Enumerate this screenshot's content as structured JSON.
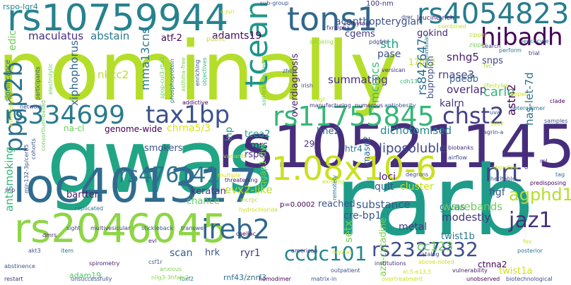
{
  "word_cloud": {
    "words": [
      {
        "text": "nominally",
        "color": "#b5de2b"
      },
      {
        "text": "gwas",
        "color": "#21a585"
      },
      {
        "text": "rs10521145",
        "color": "#472e7c"
      },
      {
        "text": "rarb",
        "color": "#1e9c89"
      },
      {
        "text": "loc401317",
        "color": "#2f6c8e"
      },
      {
        "text": "rs10759944",
        "color": "#26828e"
      },
      {
        "text": "1.08x10-6",
        "color": "#cae11f"
      },
      {
        "text": "rs2046045",
        "color": "#8ed645"
      },
      {
        "text": "tons1",
        "color": "#31678e"
      },
      {
        "text": "rs4054823",
        "color": "#297b8e"
      },
      {
        "text": "hibadh",
        "color": "#440154"
      },
      {
        "text": "tceanc",
        "color": "#1f968b"
      },
      {
        "text": "rs334699",
        "color": "#297a8e"
      },
      {
        "text": "tax1bp",
        "color": "#3b528b"
      },
      {
        "text": "rs11755845",
        "color": "#35b779"
      },
      {
        "text": "chst2",
        "color": "#433e85"
      },
      {
        "text": "ppap2b",
        "color": "#2c728e"
      },
      {
        "text": "nrt",
        "color": "#3e4989"
      },
      {
        "text": "jaz1",
        "color": "#46307e"
      },
      {
        "text": "ireb2",
        "color": "#31678e"
      },
      {
        "text": "rs476141",
        "color": "#2c728e"
      },
      {
        "text": "ccdc101",
        "color": "#25858e"
      },
      {
        "text": "rs2327832",
        "color": "#3d4e8a"
      },
      {
        "text": "agphd1",
        "color": "#b5de2b"
      },
      {
        "text": "maculatus",
        "color": "#472d7b"
      },
      {
        "text": "abstain",
        "color": "#2a788e"
      },
      {
        "text": "atf-2",
        "color": "#440154"
      },
      {
        "text": "adamts19",
        "color": "#46085c"
      },
      {
        "text": "cgems",
        "color": "#443983"
      },
      {
        "text": "acanthopterygian",
        "color": "#3b528b"
      },
      {
        "text": "gokind",
        "color": "#482677"
      },
      {
        "text": "pase",
        "color": "#3a548c"
      },
      {
        "text": "sth",
        "color": "#20a486"
      },
      {
        "text": "rs842647",
        "color": "#2d708e"
      },
      {
        "text": "snhg5",
        "color": "#481a6c"
      },
      {
        "text": "pde8b",
        "color": "#31688e"
      },
      {
        "text": "17p12",
        "color": "#bddf26"
      },
      {
        "text": "snps",
        "color": "#414487"
      },
      {
        "text": "rnase3",
        "color": "#404688"
      },
      {
        "text": "summating",
        "color": "#472c7a"
      },
      {
        "text": "overlap",
        "color": "#472a7a"
      },
      {
        "text": "kalrn",
        "color": "#46337f"
      },
      {
        "text": "carlo",
        "color": "#35b779"
      },
      {
        "text": "astn2",
        "color": "#440154"
      },
      {
        "text": "has-let-7d",
        "color": "#2c728e"
      },
      {
        "text": "bupropion",
        "color": "#3e4a89"
      },
      {
        "text": "mcrpcs",
        "color": "#3fbc73"
      },
      {
        "text": "overdiagnosis",
        "color": "#481f70"
      },
      {
        "text": "mma13cns",
        "color": "#2a788e"
      },
      {
        "text": "xiphophorus",
        "color": "#31678e"
      },
      {
        "text": "nkcc2",
        "color": "#b8de29"
      },
      {
        "text": "antismoking",
        "color": "#35b779"
      },
      {
        "text": "edic",
        "color": "#6ccd5a"
      },
      {
        "text": "significance",
        "color": "#2e6e8e"
      },
      {
        "text": "na-cl",
        "color": "#6ccd5a"
      },
      {
        "text": "genome-wide",
        "color": "#440154"
      },
      {
        "text": "chrna5/3",
        "color": "#d8e219"
      },
      {
        "text": "lnp",
        "color": "#20a386"
      },
      {
        "text": "tcea2",
        "color": "#1f9e89"
      },
      {
        "text": "hne2",
        "color": "#32648e"
      },
      {
        "text": "dichotomised",
        "color": "#24878e"
      },
      {
        "text": "smokers",
        "color": "#3b528b"
      },
      {
        "text": "emrs",
        "color": "#481f70"
      },
      {
        "text": "rspos",
        "color": "#46307e"
      },
      {
        "text": "29c",
        "color": "#472e7c"
      },
      {
        "text": "htr4",
        "color": "#2b748e"
      },
      {
        "text": "rnase2",
        "color": "#2f6c8e"
      },
      {
        "text": "liposoluble",
        "color": "#3e4989"
      },
      {
        "text": "loci",
        "color": "#481b6d"
      },
      {
        "text": "quit",
        "color": "#39568c"
      },
      {
        "text": "keratan",
        "color": "#46307e"
      },
      {
        "text": "chance",
        "color": "#5ec962"
      },
      {
        "text": "bartter",
        "color": "#481b6d"
      },
      {
        "text": "evx2-like",
        "color": "#b5de2b"
      },
      {
        "text": "reached",
        "color": "#3b528b"
      },
      {
        "text": "substance",
        "color": "#39568c"
      },
      {
        "text": "cluster",
        "color": "#c8e020"
      },
      {
        "text": "metal",
        "color": "#453882"
      },
      {
        "text": "figf",
        "color": "#3a548c"
      },
      {
        "text": "gwas",
        "color": "#2a788e"
      },
      {
        "text": "modestly",
        "color": "#46327e"
      },
      {
        "text": "wavebands",
        "color": "#6ece58"
      },
      {
        "text": "twist1b",
        "color": "#2b758e"
      },
      {
        "text": "cre-bp1",
        "color": "#39568c"
      },
      {
        "text": "setx",
        "color": "#7ad151"
      },
      {
        "text": "aza-cytadine",
        "color": "#7ad151"
      },
      {
        "text": "cc123",
        "color": "#63cb5f"
      },
      {
        "text": "ctnna2",
        "color": "#440154"
      },
      {
        "text": "twist1a",
        "color": "#d0e11c"
      },
      {
        "text": "rnf43/znrf3",
        "color": "#2c728e"
      },
      {
        "text": "adam19",
        "color": "#52c569"
      },
      {
        "text": "hrk",
        "color": "#3b528b"
      },
      {
        "text": "ryr1",
        "color": "#453882"
      },
      {
        "text": "scan",
        "color": "#365c8d"
      },
      {
        "text": "iqgap1-dvl",
        "color": "#7ad151"
      },
      {
        "text": "p=0.0002",
        "color": "#440154"
      },
      {
        "text": "rspo-lgr4",
        "color": "#26818e"
      },
      {
        "text": "100-nm",
        "color": "#46337f"
      },
      {
        "text": "leucine-rich",
        "color": "#482071"
      },
      {
        "text": "fxralpha",
        "color": "#46307e"
      },
      {
        "text": "euthyroid",
        "color": "#482878"
      },
      {
        "text": "pdgfrb",
        "color": "#433e85"
      },
      {
        "text": "c-jun",
        "color": "#d2e21b"
      },
      {
        "text": "dmr",
        "color": "#3e4989"
      },
      {
        "text": "sub-group",
        "color": "#3b528b"
      },
      {
        "text": "public",
        "color": "#bddf26"
      },
      {
        "text": "smoking",
        "color": "#8ed645"
      },
      {
        "text": "combined",
        "color": "#c2df23"
      },
      {
        "text": "zipper",
        "color": "#b8de29"
      },
      {
        "text": "leucocyte",
        "color": "#2e6e8e"
      },
      {
        "text": "search",
        "color": "#3e4989"
      },
      {
        "text": "perform",
        "color": "#2a788e"
      },
      {
        "text": "trial",
        "color": "#453882"
      },
      {
        "text": "versican",
        "color": "#472c7a"
      },
      {
        "text": "zhou",
        "color": "#3b528b"
      },
      {
        "text": "irish",
        "color": "#3e4989"
      },
      {
        "text": "cdh13",
        "color": "#35b779"
      },
      {
        "text": "lifestyles",
        "color": "#bddf26"
      },
      {
        "text": "latipes",
        "color": "#d0e11c"
      },
      {
        "text": "fvc",
        "color": "#a5db36"
      },
      {
        "text": "addictive",
        "color": "#440154"
      },
      {
        "text": "network",
        "color": "#3e4989"
      },
      {
        "text": "manufacturing",
        "color": "#46327e"
      },
      {
        "text": "numerous",
        "color": "#481a6c"
      },
      {
        "text": "antiobesity",
        "color": "#39568c"
      },
      {
        "text": "agrin-a",
        "color": "#404688"
      },
      {
        "text": "clade",
        "color": "#440154"
      },
      {
        "text": "heterodimer",
        "color": "#2c728e"
      },
      {
        "text": "uva",
        "color": "#3b528b"
      },
      {
        "text": "500k",
        "color": "#bddf26"
      },
      {
        "text": "samples",
        "color": "#3b528b"
      },
      {
        "text": "biobanks",
        "color": "#472a7a"
      },
      {
        "text": "airflow",
        "color": "#3e4989"
      },
      {
        "text": "-spondins",
        "color": "#c8e020"
      },
      {
        "text": "chondroitin",
        "color": "#482475"
      },
      {
        "text": "rpl",
        "color": "#472e7c"
      },
      {
        "text": "tag",
        "color": "#2c728e"
      },
      {
        "text": "predisposing",
        "color": "#440154"
      },
      {
        "text": "cohorts",
        "color": "#3b528b"
      },
      {
        "text": "snp",
        "color": "#46337f"
      },
      {
        "text": "replicated",
        "color": "#2a788e"
      },
      {
        "text": "variants",
        "color": "#a5db36"
      },
      {
        "text": "multiple",
        "color": "#d2e21b"
      },
      {
        "text": "threatening",
        "color": "#482071"
      },
      {
        "text": "existing",
        "color": "#c8e020"
      },
      {
        "text": "degrons",
        "color": "#3e4989"
      },
      {
        "text": "heritable",
        "color": "#3b528b"
      },
      {
        "text": "sight",
        "color": "#3e4989"
      },
      {
        "text": "multivesicular",
        "color": "#453882"
      },
      {
        "text": "stickleback",
        "color": "#3b528b"
      },
      {
        "text": "transwell",
        "color": "#3e4989"
      },
      {
        "text": "dmrs",
        "color": "#481f70"
      },
      {
        "text": "coeliac",
        "color": "#440154"
      },
      {
        "text": "american",
        "color": "#46337f"
      },
      {
        "text": "item",
        "color": "#2c728e"
      },
      {
        "text": "akt3",
        "color": "#3b528b"
      },
      {
        "text": "evl",
        "color": "#482677"
      },
      {
        "text": "csf1r",
        "color": "#39568c"
      },
      {
        "text": "institutions",
        "color": "#46307e"
      },
      {
        "text": "catalog",
        "color": "#3e4989"
      },
      {
        "text": "fev",
        "color": "#c2df23"
      },
      {
        "text": "posterior",
        "color": "#2c728e"
      },
      {
        "text": "abstinence",
        "color": "#3b528b"
      },
      {
        "text": "spirometry",
        "color": "#482475"
      },
      {
        "text": "restart",
        "color": "#46307e"
      },
      {
        "text": "unsuccessfully",
        "color": "#3b528b"
      },
      {
        "text": "foxf2",
        "color": "#2a788e"
      },
      {
        "text": "homodimer",
        "color": "#440154"
      },
      {
        "text": "matrix-in",
        "color": "#3b528b"
      },
      {
        "text": "overtreatment",
        "color": "#c8e020"
      },
      {
        "text": "vulnerability",
        "color": "#481b6d"
      },
      {
        "text": "unobserved",
        "color": "#440154"
      },
      {
        "text": "biotechnological",
        "color": "#3e4989"
      },
      {
        "text": "above-noted",
        "color": "#d0e11c"
      },
      {
        "text": "outpatient",
        "color": "#3b528b"
      },
      {
        "text": "remotely",
        "color": "#2c728e"
      },
      {
        "text": "hydrochloride",
        "color": "#c8e020"
      },
      {
        "text": "mcrpc",
        "color": "#b5de2b"
      },
      {
        "text": "enriching",
        "color": "#3b528b"
      },
      {
        "text": "objectives",
        "color": "#35b779"
      },
      {
        "text": "asthma-free",
        "color": "#7ad151"
      },
      {
        "text": "phosphoprotein",
        "color": "#2a788e"
      },
      {
        "text": "spop-cul3-rbx1",
        "color": "#5ec962"
      },
      {
        "text": "participants",
        "color": "#3b528b"
      },
      {
        "text": "wavelengths",
        "color": "#d2e21b"
      },
      {
        "text": "consortium-based",
        "color": "#6ccd5a"
      },
      {
        "text": "mir-132-3p/cerb5",
        "color": "#3b528b"
      },
      {
        "text": "soil-transmitted",
        "color": "#52c569"
      },
      {
        "text": "mammalian",
        "color": "#2c728e"
      },
      {
        "text": "electrolytic",
        "color": "#6ccd5a"
      },
      {
        "text": "nlig3-3hfain3",
        "color": "#8ed645"
      },
      {
        "text": "el.5-e13,5",
        "color": "#d2e21b"
      },
      {
        "text": "oryzias",
        "color": "#d0e11c"
      },
      {
        "text": "zipper",
        "color": "#7ad151"
      },
      {
        "text": "ctgf",
        "color": "#c8e020"
      },
      {
        "text": "anxious",
        "color": "#7ad151"
      }
    ]
  }
}
